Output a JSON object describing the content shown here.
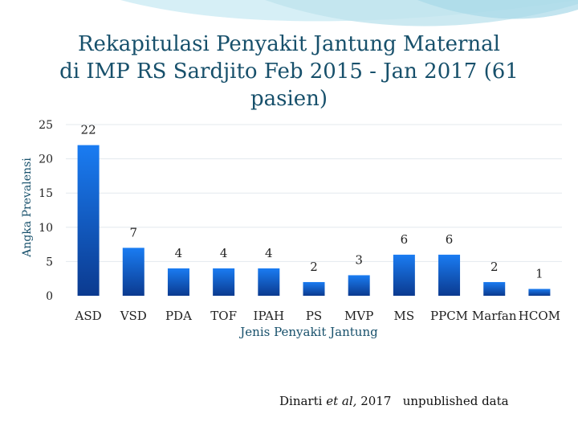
{
  "colors": {
    "title": "#17506b",
    "bar_top": "#1a7cf2",
    "bar_bottom": "#0b3a8f",
    "grid": "#e3e8ee",
    "swoosh": "#bfe3ee"
  },
  "title_lines": [
    "Rekapitulasi Penyakit Jantung Maternal",
    "di IMP RS  Sardjito  Feb 2015 - Jan 2017 (61",
    "pasien)"
  ],
  "chart_data": {
    "type": "bar",
    "title": "Rekapitulasi Penyakit Jantung Maternal di IMP RS Sardjito Feb 2015 - Jan 2017 (61 pasien)",
    "xlabel": "Jenis Penyakit Jantung",
    "ylabel": "Angka Prevalensi",
    "ylim": [
      0,
      25
    ],
    "yticks": [
      0,
      5,
      10,
      15,
      20,
      25
    ],
    "grid": true,
    "categories": [
      "ASD",
      "VSD",
      "PDA",
      "TOF",
      "IPAH",
      "PS",
      "MVP",
      "MS",
      "PPCM",
      "Marfan",
      "HCOM"
    ],
    "values": [
      22,
      7,
      4,
      4,
      4,
      2,
      3,
      6,
      6,
      2,
      1
    ]
  },
  "citation": {
    "author": "Dinarti",
    "etal": "et al,",
    "year": "2017",
    "note": "unpublished data"
  }
}
